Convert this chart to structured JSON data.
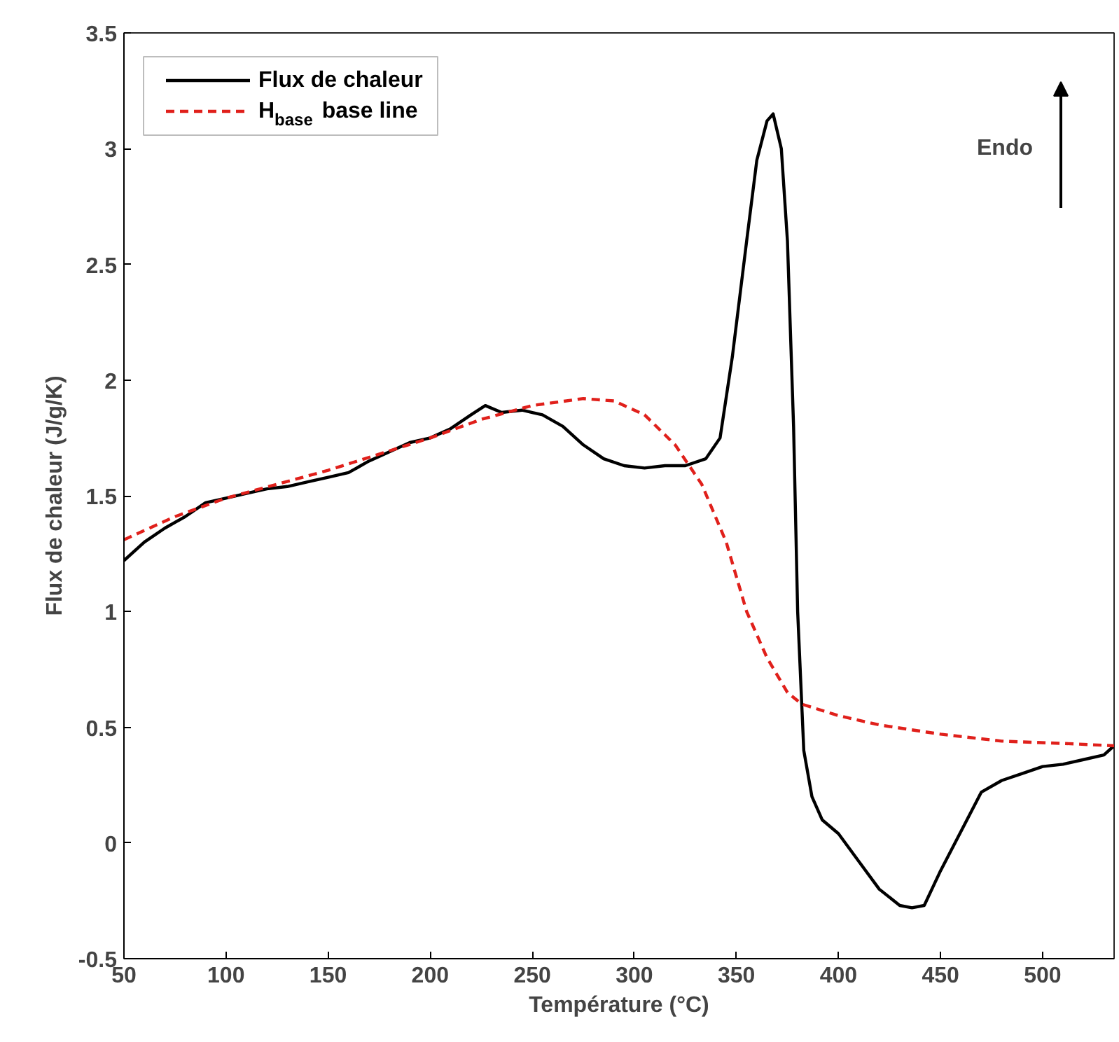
{
  "chart_data": {
    "type": "line",
    "xlabel": "Température (°C)",
    "ylabel": "Flux de chaleur (J/g/K)",
    "xlim": [
      50,
      535
    ],
    "ylim": [
      -0.5,
      3.5
    ],
    "xticks": [
      50,
      100,
      150,
      200,
      250,
      300,
      350,
      400,
      450,
      500
    ],
    "yticks": [
      -0.5,
      0,
      0.5,
      1,
      1.5,
      2,
      2.5,
      3,
      3.5
    ],
    "grid": false,
    "legend": "top left",
    "annotations": [
      "Endo"
    ],
    "series": [
      {
        "name": "Flux de chaleur",
        "color": "#000000",
        "line_style": "solid",
        "x": [
          50,
          60,
          70,
          80,
          90,
          100,
          110,
          120,
          130,
          140,
          150,
          160,
          170,
          180,
          190,
          200,
          210,
          220,
          227,
          235,
          245,
          255,
          265,
          275,
          285,
          295,
          305,
          315,
          325,
          335,
          342,
          348,
          355,
          360,
          365,
          368,
          372,
          375,
          378,
          380,
          383,
          387,
          392,
          400,
          410,
          420,
          430,
          436,
          442,
          450,
          460,
          470,
          480,
          490,
          500,
          510,
          520,
          530,
          535
        ],
        "values": [
          1.22,
          1.3,
          1.36,
          1.41,
          1.47,
          1.49,
          1.51,
          1.53,
          1.54,
          1.56,
          1.58,
          1.6,
          1.65,
          1.69,
          1.73,
          1.75,
          1.79,
          1.85,
          1.89,
          1.86,
          1.87,
          1.85,
          1.8,
          1.72,
          1.66,
          1.63,
          1.62,
          1.63,
          1.63,
          1.66,
          1.75,
          2.1,
          2.6,
          2.95,
          3.12,
          3.15,
          3.0,
          2.6,
          1.8,
          1.0,
          0.4,
          0.2,
          0.1,
          0.04,
          -0.08,
          -0.2,
          -0.27,
          -0.28,
          -0.27,
          -0.12,
          0.05,
          0.22,
          0.27,
          0.3,
          0.33,
          0.34,
          0.36,
          0.38,
          0.42
        ]
      },
      {
        "name": "H$_{base}$ base line",
        "color": "#e0201b",
        "line_style": "dashed",
        "x": [
          50,
          75,
          100,
          150,
          200,
          225,
          250,
          275,
          290,
          305,
          320,
          333,
          345,
          355,
          365,
          375,
          382,
          400,
          420,
          450,
          480,
          510,
          535
        ],
        "values": [
          1.31,
          1.41,
          1.49,
          1.61,
          1.75,
          1.83,
          1.89,
          1.92,
          1.91,
          1.85,
          1.72,
          1.55,
          1.3,
          1.0,
          0.8,
          0.65,
          0.6,
          0.55,
          0.51,
          0.47,
          0.44,
          0.43,
          0.42
        ]
      }
    ]
  }
}
